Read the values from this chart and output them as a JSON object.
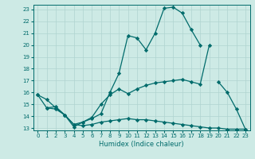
{
  "xlabel": "Humidex (Indice chaleur)",
  "xlim": [
    -0.5,
    23.5
  ],
  "ylim": [
    12.8,
    23.4
  ],
  "yticks": [
    13,
    14,
    15,
    16,
    17,
    18,
    19,
    20,
    21,
    22,
    23
  ],
  "xticks": [
    0,
    1,
    2,
    3,
    4,
    5,
    6,
    7,
    8,
    9,
    10,
    11,
    12,
    13,
    14,
    15,
    16,
    17,
    18,
    19,
    20,
    21,
    22,
    23
  ],
  "bg_color": "#cdeae5",
  "line_color": "#006b6b",
  "grid_color": "#b0d4d0",
  "curves": [
    {
      "segments": [
        [
          [
            0,
            15.8
          ],
          [
            1,
            15.4
          ],
          [
            2,
            14.7
          ],
          [
            3,
            14.1
          ],
          [
            4,
            13.1
          ],
          [
            5,
            13.5
          ],
          [
            6,
            13.8
          ],
          [
            7,
            14.2
          ],
          [
            8,
            16.0
          ],
          [
            9,
            17.6
          ],
          [
            10,
            20.8
          ],
          [
            11,
            20.6
          ],
          [
            12,
            19.6
          ],
          [
            13,
            21.0
          ],
          [
            14,
            23.1
          ],
          [
            15,
            23.2
          ],
          [
            16,
            22.7
          ],
          [
            17,
            21.3
          ],
          [
            18,
            20.0
          ]
        ],
        [
          [
            20,
            16.9
          ],
          [
            21,
            16.0
          ],
          [
            22,
            14.6
          ],
          [
            23,
            12.9
          ]
        ]
      ]
    },
    {
      "segments": [
        [
          [
            1,
            14.7
          ],
          [
            2,
            14.8
          ],
          [
            3,
            14.1
          ],
          [
            4,
            13.3
          ],
          [
            5,
            13.5
          ],
          [
            6,
            13.9
          ],
          [
            7,
            15.0
          ],
          [
            8,
            15.8
          ],
          [
            9,
            16.3
          ],
          [
            10,
            15.9
          ],
          [
            11,
            16.3
          ],
          [
            12,
            16.6
          ],
          [
            13,
            16.8
          ],
          [
            14,
            16.9
          ],
          [
            15,
            17.0
          ],
          [
            16,
            17.1
          ],
          [
            17,
            16.9
          ],
          [
            18,
            16.7
          ],
          [
            19,
            20.0
          ]
        ]
      ]
    },
    {
      "segments": [
        [
          [
            0,
            15.8
          ],
          [
            1,
            14.7
          ],
          [
            2,
            14.6
          ],
          [
            3,
            14.1
          ],
          [
            4,
            13.3
          ],
          [
            5,
            13.2
          ],
          [
            6,
            13.3
          ],
          [
            7,
            13.5
          ],
          [
            8,
            13.6
          ],
          [
            9,
            13.7
          ],
          [
            10,
            13.8
          ],
          [
            11,
            13.7
          ],
          [
            12,
            13.7
          ],
          [
            13,
            13.6
          ],
          [
            14,
            13.5
          ],
          [
            15,
            13.4
          ],
          [
            16,
            13.3
          ],
          [
            17,
            13.2
          ],
          [
            18,
            13.1
          ],
          [
            19,
            13.0
          ],
          [
            20,
            13.0
          ],
          [
            21,
            12.9
          ],
          [
            22,
            12.9
          ],
          [
            23,
            12.9
          ]
        ]
      ]
    }
  ]
}
